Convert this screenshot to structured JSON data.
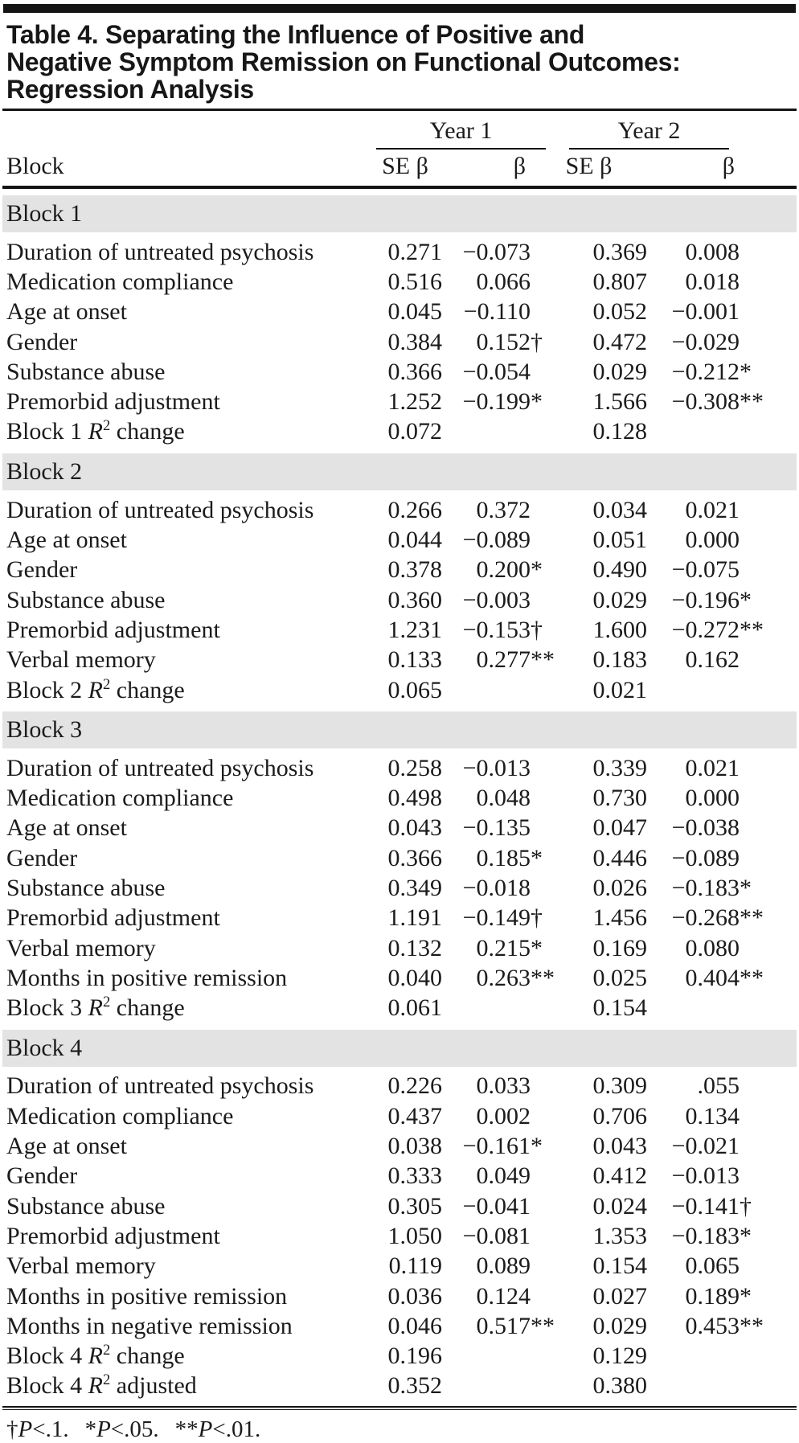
{
  "title": "Table 4. Separating the Influence of Positive and Negative Symptom Remission on Functional Outcomes: Regression Analysis",
  "title_lines": [
    "Table 4. Separating the Influence of Positive and",
    "Negative Symptom Remission on Functional Outcomes:",
    "Regression Analysis"
  ],
  "table": {
    "column_headers": {
      "block": "Block",
      "year1": "Year 1",
      "year2": "Year 2",
      "se_beta": "SE β",
      "beta": "β"
    },
    "sections": [
      {
        "label": "Block 1",
        "rows": [
          {
            "label": "Duration of untreated psychosis",
            "y1_se": "0.271",
            "y1_b": "−0.073",
            "y2_se": "0.369",
            "y2_b": "0.008"
          },
          {
            "label": "Medication compliance",
            "y1_se": "0.516",
            "y1_b": "0.066",
            "y2_se": "0.807",
            "y2_b": "0.018"
          },
          {
            "label": "Age at onset",
            "y1_se": "0.045",
            "y1_b": "−0.110",
            "y2_se": "0.052",
            "y2_b": "−0.001"
          },
          {
            "label": "Gender",
            "y1_se": "0.384",
            "y1_b": "0.152†",
            "y2_se": "0.472",
            "y2_b": "−0.029"
          },
          {
            "label": "Substance abuse",
            "y1_se": "0.366",
            "y1_b": "−0.054",
            "y2_se": "0.029",
            "y2_b": "−0.212*"
          },
          {
            "label": "Premorbid adjustment",
            "y1_se": "1.252",
            "y1_b": "−0.199*",
            "y2_se": "1.566",
            "y2_b": "−0.308**"
          },
          {
            "label": "Block 1 R² change",
            "y1_se": "0.072",
            "y1_b": "",
            "y2_se": "0.128",
            "y2_b": ""
          }
        ]
      },
      {
        "label": "Block 2",
        "rows": [
          {
            "label": "Duration of untreated psychosis",
            "y1_se": "0.266",
            "y1_b": "0.372",
            "y2_se": "0.034",
            "y2_b": "0.021"
          },
          {
            "label": "Age at onset",
            "y1_se": "0.044",
            "y1_b": "−0.089",
            "y2_se": "0.051",
            "y2_b": "0.000"
          },
          {
            "label": "Gender",
            "y1_se": "0.378",
            "y1_b": "0.200*",
            "y2_se": "0.490",
            "y2_b": "−0.075"
          },
          {
            "label": "Substance abuse",
            "y1_se": "0.360",
            "y1_b": "−0.003",
            "y2_se": "0.029",
            "y2_b": "−0.196*"
          },
          {
            "label": "Premorbid adjustment",
            "y1_se": "1.231",
            "y1_b": "−0.153†",
            "y2_se": "1.600",
            "y2_b": "−0.272**"
          },
          {
            "label": "Verbal memory",
            "y1_se": "0.133",
            "y1_b": "0.277**",
            "y2_se": "0.183",
            "y2_b": "0.162"
          },
          {
            "label": "Block 2 R² change",
            "y1_se": "0.065",
            "y1_b": "",
            "y2_se": "0.021",
            "y2_b": ""
          }
        ]
      },
      {
        "label": "Block 3",
        "rows": [
          {
            "label": "Duration of untreated psychosis",
            "y1_se": "0.258",
            "y1_b": "−0.013",
            "y2_se": "0.339",
            "y2_b": "0.021"
          },
          {
            "label": "Medication compliance",
            "y1_se": "0.498",
            "y1_b": "0.048",
            "y2_se": "0.730",
            "y2_b": "0.000"
          },
          {
            "label": "Age at onset",
            "y1_se": "0.043",
            "y1_b": "−0.135",
            "y2_se": "0.047",
            "y2_b": "−0.038"
          },
          {
            "label": "Gender",
            "y1_se": "0.366",
            "y1_b": "0.185*",
            "y2_se": "0.446",
            "y2_b": "−0.089"
          },
          {
            "label": "Substance abuse",
            "y1_se": "0.349",
            "y1_b": "−0.018",
            "y2_se": "0.026",
            "y2_b": "−0.183*"
          },
          {
            "label": "Premorbid adjustment",
            "y1_se": "1.191",
            "y1_b": "−0.149†",
            "y2_se": "1.456",
            "y2_b": "−0.268**"
          },
          {
            "label": "Verbal memory",
            "y1_se": "0.132",
            "y1_b": "0.215*",
            "y2_se": "0.169",
            "y2_b": "0.080"
          },
          {
            "label": "Months in positive remission",
            "y1_se": "0.040",
            "y1_b": "0.263**",
            "y2_se": "0.025",
            "y2_b": "0.404**"
          },
          {
            "label": "Block 3 R² change",
            "y1_se": "0.061",
            "y1_b": "",
            "y2_se": "0.154",
            "y2_b": ""
          }
        ]
      },
      {
        "label": "Block 4",
        "rows": [
          {
            "label": "Duration of untreated psychosis",
            "y1_se": "0.226",
            "y1_b": "0.033",
            "y2_se": "0.309",
            "y2_b": ".055"
          },
          {
            "label": "Medication compliance",
            "y1_se": "0.437",
            "y1_b": "0.002",
            "y2_se": "0.706",
            "y2_b": "0.134"
          },
          {
            "label": "Age at onset",
            "y1_se": "0.038",
            "y1_b": "−0.161*",
            "y2_se": "0.043",
            "y2_b": "−0.021"
          },
          {
            "label": "Gender",
            "y1_se": "0.333",
            "y1_b": "0.049",
            "y2_se": "0.412",
            "y2_b": "−0.013"
          },
          {
            "label": "Substance abuse",
            "y1_se": "0.305",
            "y1_b": "−0.041",
            "y2_se": "0.024",
            "y2_b": "−0.141†"
          },
          {
            "label": "Premorbid adjustment",
            "y1_se": "1.050",
            "y1_b": "−0.081",
            "y2_se": "1.353",
            "y2_b": "−0.183*"
          },
          {
            "label": "Verbal memory",
            "y1_se": "0.119",
            "y1_b": "0.089",
            "y2_se": "0.154",
            "y2_b": "0.065"
          },
          {
            "label": "Months in positive remission",
            "y1_se": "0.036",
            "y1_b": "0.124",
            "y2_se": "0.027",
            "y2_b": "0.189*"
          },
          {
            "label": "Months in negative remission",
            "y1_se": "0.046",
            "y1_b": "0.517**",
            "y2_se": "0.029",
            "y2_b": "0.453**"
          },
          {
            "label": "Block 4 R² change",
            "y1_se": "0.196",
            "y1_b": "",
            "y2_se": "0.129",
            "y2_b": ""
          },
          {
            "label": "Block 4 R² adjusted",
            "y1_se": "0.352",
            "y1_b": "",
            "y2_se": "0.380",
            "y2_b": ""
          }
        ]
      }
    ]
  },
  "footnotes": [
    "†P<.1.",
    "*P<.05.",
    "**P<.01."
  ]
}
